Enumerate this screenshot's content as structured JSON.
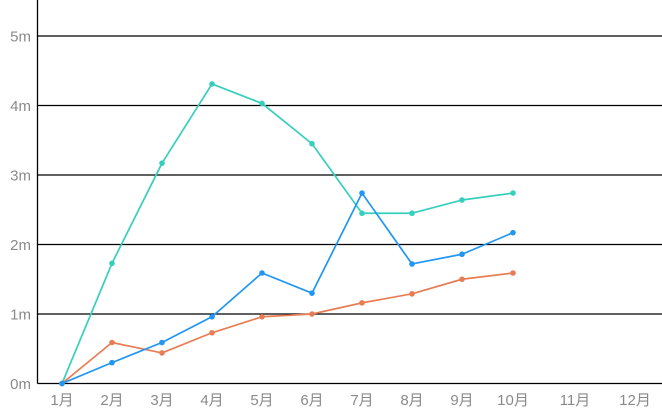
{
  "page": {
    "background_color": "#ffffff"
  },
  "chart_data": {
    "type": "line",
    "title": "",
    "xlabel": "",
    "ylabel": "",
    "legend": "none",
    "grid": true,
    "axis_color": "#000000",
    "tick_label_color": "#8a8a8a",
    "x_categories": [
      "1月",
      "2月",
      "3月",
      "4月",
      "5月",
      "6月",
      "7月",
      "8月",
      "9月",
      "10月",
      "11月",
      "12月"
    ],
    "y_tick_labels": [
      "0m",
      "1m",
      "2m",
      "3m",
      "4m",
      "5m"
    ],
    "ylim": [
      0,
      5.6
    ],
    "series": [
      {
        "id": "teal",
        "color": "#36cfbd",
        "marker": "circle",
        "values": [
          0,
          1.73,
          3.17,
          4.31,
          4.03,
          3.45,
          2.45,
          2.45,
          2.64,
          2.74
        ]
      },
      {
        "id": "orange",
        "color": "#e87d55",
        "marker": "circle",
        "values": [
          0,
          0.59,
          0.44,
          0.73,
          0.96,
          1.0,
          1.16,
          1.29,
          1.5,
          1.59
        ]
      },
      {
        "id": "blue",
        "color": "#2196f3",
        "marker": "circle",
        "values": [
          0,
          0.3,
          0.59,
          0.96,
          1.59,
          1.3,
          2.74,
          1.72,
          1.86,
          2.17
        ]
      }
    ]
  }
}
